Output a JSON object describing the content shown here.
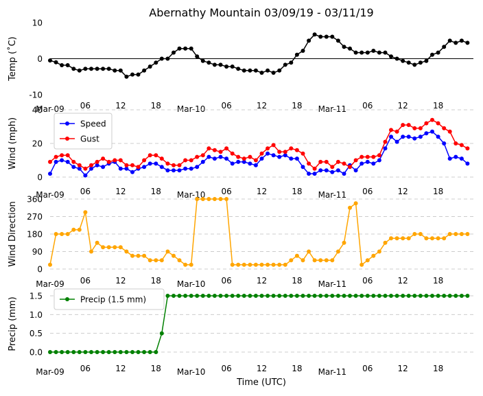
{
  "title": "Abernathy Mountain 03/09/19 - 03/11/19",
  "xlabel": "Time (UTC)",
  "x_ticks": [
    "Mar-09",
    "06",
    "12",
    "18",
    "Mar-10",
    "06",
    "12",
    "18",
    "Mar-11",
    "06",
    "12",
    "18"
  ],
  "chart_data": [
    {
      "type": "line",
      "title": "Abernathy Mountain 03/09/19 - 03/11/19",
      "ylabel": "Temp (˚C)",
      "ylim": [
        -10,
        10
      ],
      "yticks": [
        -10,
        0,
        10
      ],
      "xlim": [
        0,
        72
      ],
      "zero_line": true,
      "series": [
        {
          "name": "Temp",
          "color": "#000000",
          "values": [
            -0.5,
            -1.0,
            -1.8,
            -1.8,
            -2.8,
            -3.3,
            -2.8,
            -2.8,
            -2.8,
            -2.8,
            -2.8,
            -3.3,
            -3.3,
            -5.0,
            -4.4,
            -4.4,
            -3.3,
            -2.2,
            -1.1,
            0.0,
            0.0,
            1.7,
            2.8,
            2.8,
            2.8,
            0.6,
            -0.6,
            -1.1,
            -1.7,
            -1.7,
            -2.2,
            -2.2,
            -2.8,
            -3.3,
            -3.3,
            -3.3,
            -3.9,
            -3.3,
            -3.9,
            -3.3,
            -1.7,
            -1.1,
            1.1,
            2.2,
            5.0,
            6.7,
            6.1,
            6.1,
            6.1,
            5.0,
            3.3,
            2.8,
            1.7,
            1.7,
            1.7,
            2.2,
            1.7,
            1.7,
            0.6,
            0.0,
            -0.6,
            -1.1,
            -1.7,
            -1.1,
            -0.6,
            1.1,
            1.7,
            3.3,
            5.0,
            4.4,
            5.0,
            4.4
          ]
        }
      ]
    },
    {
      "type": "line",
      "ylabel": "Wind (mph)",
      "ylim": [
        0,
        40
      ],
      "yticks": [
        0,
        20,
        40
      ],
      "xlim": [
        0,
        72
      ],
      "legend": "top-left",
      "series": [
        {
          "name": "Speed",
          "color": "#0000ff",
          "values": [
            2,
            9,
            10,
            9,
            6,
            5,
            1,
            5,
            7,
            6,
            8,
            9,
            5,
            5,
            3,
            5,
            6,
            8,
            8,
            6,
            4,
            4,
            4,
            5,
            5,
            6,
            9,
            12,
            11,
            12,
            11,
            8,
            9,
            9,
            8,
            7,
            11,
            14,
            13,
            12,
            13,
            11,
            11,
            6,
            2,
            2,
            4,
            4,
            3,
            4,
            2,
            7,
            4,
            8,
            9,
            8,
            10,
            17,
            24,
            21,
            24,
            24,
            23,
            24,
            26,
            27,
            24,
            20,
            11,
            12,
            11,
            8
          ]
        },
        {
          "name": "Gust",
          "color": "#ff0000",
          "values": [
            9,
            12,
            13,
            13,
            9,
            7,
            5,
            7,
            9,
            11,
            9,
            10,
            10,
            7,
            7,
            6,
            10,
            13,
            13,
            11,
            8,
            7,
            7,
            10,
            10,
            12,
            13,
            17,
            16,
            15,
            17,
            14,
            12,
            11,
            12,
            10,
            14,
            17,
            19,
            15,
            15,
            17,
            16,
            14,
            8,
            5,
            9,
            9,
            6,
            9,
            8,
            6,
            10,
            12,
            12,
            12,
            13,
            21,
            28,
            27,
            31,
            31,
            29,
            29,
            32,
            34,
            32,
            29,
            27,
            20,
            19,
            17
          ]
        }
      ]
    },
    {
      "type": "line",
      "ylabel": "Wind Direction",
      "ylim": [
        0,
        360
      ],
      "yticks": [
        0,
        90,
        180,
        270,
        360
      ],
      "xlim": [
        0,
        72
      ],
      "series": [
        {
          "name": "Direction",
          "color": "#ffa500",
          "values": [
            22,
            180,
            180,
            180,
            202,
            202,
            292,
            90,
            135,
            112,
            112,
            112,
            112,
            90,
            68,
            68,
            68,
            45,
            45,
            45,
            90,
            68,
            45,
            22,
            22,
            360,
            360,
            360,
            360,
            360,
            360,
            22,
            22,
            22,
            22,
            22,
            22,
            22,
            22,
            22,
            22,
            45,
            68,
            45,
            90,
            45,
            45,
            45,
            45,
            90,
            135,
            315,
            338,
            22,
            45,
            68,
            90,
            135,
            158,
            158,
            158,
            158,
            180,
            180,
            158,
            158,
            158,
            158,
            180,
            180,
            180,
            180
          ]
        }
      ]
    },
    {
      "type": "line",
      "ylabel": "Precip (mm)",
      "ylim": [
        -0.1,
        1.6
      ],
      "yticks": [
        "0.0",
        "0.5",
        "1.0",
        "1.5"
      ],
      "xlim": [
        0,
        72
      ],
      "legend": "top-left",
      "series": [
        {
          "name": "Precip (1.5 mm)",
          "color": "#008000",
          "values": [
            0,
            0,
            0,
            0,
            0,
            0,
            0,
            0,
            0,
            0,
            0,
            0,
            0,
            0,
            0,
            0,
            0,
            0,
            0,
            0.5,
            1.5,
            1.5,
            1.5,
            1.5,
            1.5,
            1.5,
            1.5,
            1.5,
            1.5,
            1.5,
            1.5,
            1.5,
            1.5,
            1.5,
            1.5,
            1.5,
            1.5,
            1.5,
            1.5,
            1.5,
            1.5,
            1.5,
            1.5,
            1.5,
            1.5,
            1.5,
            1.5,
            1.5,
            1.5,
            1.5,
            1.5,
            1.5,
            1.5,
            1.5,
            1.5,
            1.5,
            1.5,
            1.5,
            1.5,
            1.5,
            1.5,
            1.5,
            1.5,
            1.5,
            1.5,
            1.5,
            1.5,
            1.5,
            1.5,
            1.5,
            1.5,
            1.5
          ]
        }
      ]
    }
  ]
}
